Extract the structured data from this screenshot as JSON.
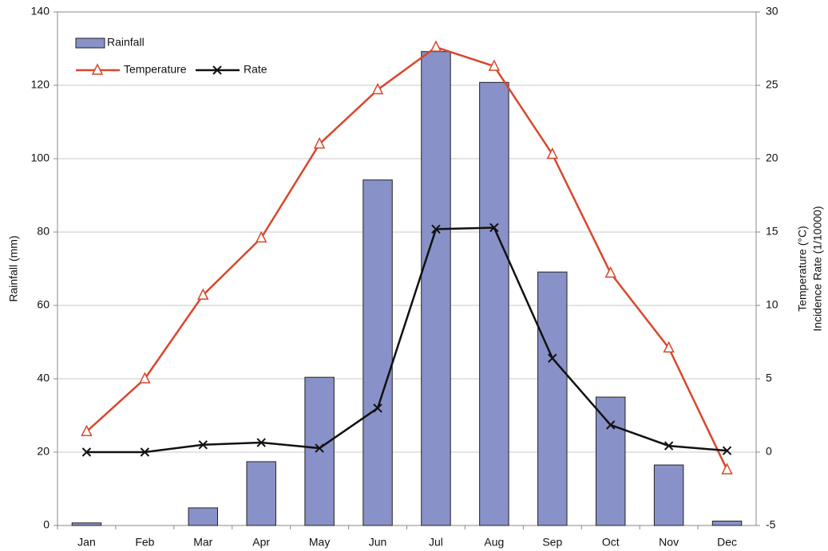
{
  "chart_data": {
    "type": "bar-line",
    "categories": [
      "Jan",
      "Feb",
      "Mar",
      "Apr",
      "May",
      "Jun",
      "Jul",
      "Aug",
      "Sep",
      "Oct",
      "Nov",
      "Dec"
    ],
    "ylabel": "Rainfall (mm)",
    "y2label": [
      "Temperature (°C)",
      "Incidence Rate (1/10000)"
    ],
    "ylim": [
      0,
      140
    ],
    "yticks": [
      0,
      20,
      40,
      60,
      80,
      100,
      120,
      140
    ],
    "y2lim": [
      -5,
      30
    ],
    "y2ticks": [
      -5,
      0,
      5,
      10,
      15,
      20,
      25,
      30
    ],
    "grid": true,
    "series": [
      {
        "name": "Rainfall",
        "type": "bar",
        "color": "#8891c8",
        "values": [
          0.7,
          0,
          4.8,
          17.4,
          40.4,
          94.2,
          129.2,
          120.8,
          69.1,
          35,
          16.5,
          1.2
        ]
      },
      {
        "name": "Temperature",
        "type": "line",
        "axis": "y2",
        "marker": "triangle",
        "color": "#d9472b",
        "values": [
          1.4,
          5.0,
          10.7,
          14.6,
          21.0,
          24.7,
          27.6,
          26.3,
          20.3,
          12.2,
          7.1,
          -1.2
        ]
      },
      {
        "name": "Rate",
        "type": "line",
        "axis": "y2",
        "marker": "x",
        "color": "#111111",
        "values": [
          0,
          0,
          0.5,
          0.65,
          0.27,
          3.0,
          15.2,
          15.3,
          6.4,
          1.85,
          0.43,
          0.1
        ]
      }
    ]
  }
}
